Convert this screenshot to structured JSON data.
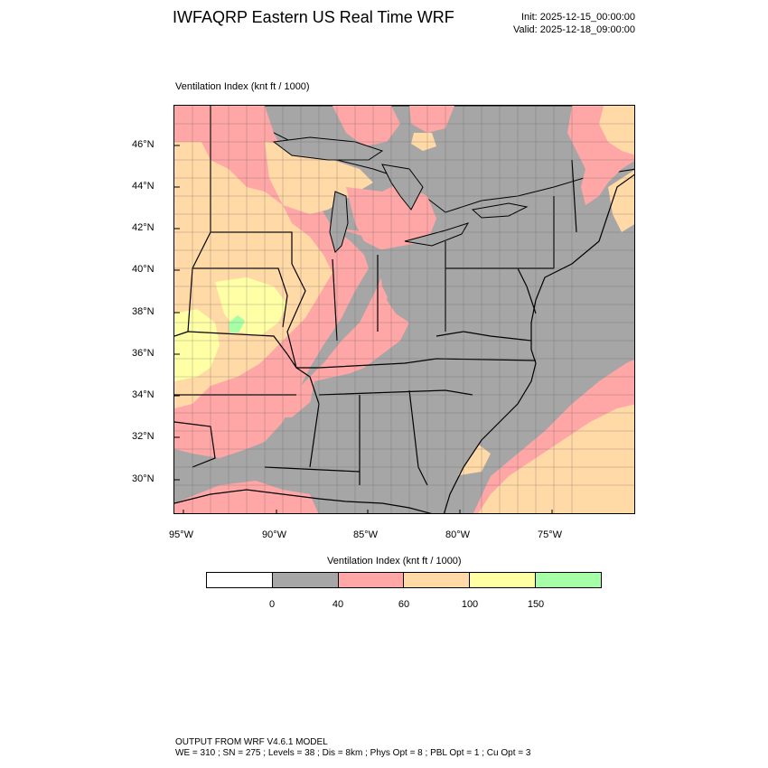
{
  "header": {
    "title": "IWFAQRP Eastern US Real Time WRF",
    "init": "Init: 2025-12-15_00:00:00",
    "valid": "Valid: 2025-12-18_09:00:00"
  },
  "field_label": "Ventilation Index   (knt ft / 1000)",
  "map": {
    "lat_labels": [
      "46°N",
      "44°N",
      "42°N",
      "40°N",
      "38°N",
      "36°N",
      "34°N",
      "32°N",
      "30°N"
    ],
    "lon_labels": [
      "95°W",
      "90°W",
      "85°W",
      "80°W",
      "75°W"
    ],
    "colors": {
      "ocean": "#a6a6a6",
      "land_low": "#a6a6a6",
      "pink": "#ffa6a6",
      "orange": "#ffd9a6",
      "yellow": "#ffffa6",
      "green": "#a6ffa6",
      "border": "#000000"
    }
  },
  "colorbar": {
    "title": "Ventilation Index  (knt ft / 1000)",
    "colors": [
      "#ffffff",
      "#a6a6a6",
      "#ffa6a6",
      "#ffd9a6",
      "#ffffa6",
      "#a6ffa6"
    ],
    "labels": [
      "0",
      "40",
      "60",
      "100",
      "150"
    ]
  },
  "footer": {
    "line1": "OUTPUT FROM WRF V4.6.1 MODEL",
    "line2": "WE = 310 ; SN = 275 ; Levels = 38 ; Dis = 8km ; Phys Opt = 8 ; PBL Opt = 1 ; Cu Opt = 3"
  }
}
